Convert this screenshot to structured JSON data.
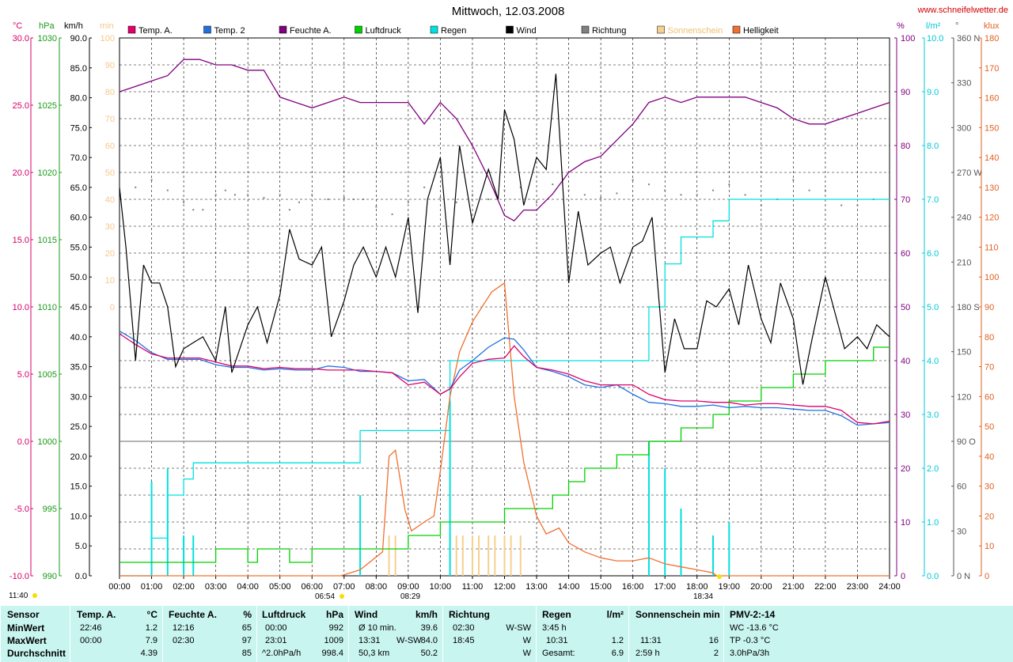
{
  "header": {
    "title": "Mittwoch, 12.03.2008",
    "site": "www.schneifelwetter.de"
  },
  "axes": {
    "temp": {
      "unit": "°C",
      "ticks": [
        "30.0",
        "25.0",
        "20.0",
        "15.0",
        "10.0",
        "5.0",
        "0.0",
        "-5.0",
        "-10.0"
      ],
      "color": "#d4006b"
    },
    "hpa": {
      "unit": "hPa",
      "ticks": [
        "1030",
        "1025",
        "1020",
        "1015",
        "1010",
        "1005",
        "1000",
        "995",
        "990"
      ],
      "color": "#1a9a1a"
    },
    "kmh": {
      "unit": "km/h",
      "ticks": [
        "90.0",
        "85.0",
        "80.0",
        "75.0",
        "70.0",
        "65.0",
        "60.0",
        "55.0",
        "50.0",
        "45.0",
        "40.0",
        "35.0",
        "30.0",
        "25.0",
        "20.0",
        "15.0",
        "10.0",
        "5.0",
        "0.0"
      ],
      "color": "#000000"
    },
    "min": {
      "unit": "min",
      "ticks": [
        "100",
        "90",
        "80",
        "70",
        "60",
        "50",
        "40",
        "30",
        "20",
        "10",
        "0"
      ],
      "color": "#f5c88a"
    },
    "pct": {
      "unit": "%",
      "ticks": [
        "100",
        "90",
        "80",
        "70",
        "60",
        "50",
        "40",
        "30",
        "20",
        "10",
        "0"
      ],
      "color": "#800080"
    },
    "rain": {
      "unit": "l/m²",
      "ticks": [
        "10.0",
        "9.0",
        "8.0",
        "7.0",
        "6.0",
        "5.0",
        "4.0",
        "3.0",
        "2.0",
        "1.0",
        "0.0"
      ],
      "color": "#00c8d8"
    },
    "dir": {
      "unit": "°",
      "ticks": [
        "360 N",
        "330",
        "300",
        "270 W",
        "240",
        "210",
        "180 S",
        "150",
        "120",
        "90 O",
        "60",
        "30",
        "0 N"
      ],
      "color": "#555555"
    },
    "klux": {
      "unit": "klux",
      "ticks": [
        "180",
        "170",
        "160",
        "150",
        "140",
        "130",
        "120",
        "110",
        "100",
        "90",
        "80",
        "70",
        "60",
        "50",
        "40",
        "30",
        "20",
        "10",
        "0"
      ],
      "color": "#e06020"
    },
    "time_ticks": [
      "00:00",
      "01:00",
      "02:00",
      "03:00",
      "04:00",
      "05:00",
      "06:00",
      "07:00",
      "08:00",
      "09:00",
      "10:00",
      "11:00",
      "12:00",
      "13:00",
      "14:00",
      "15:00",
      "16:00",
      "17:00",
      "18:00",
      "19:00",
      "20:00",
      "21:00",
      "22:00",
      "23:00",
      "24:00"
    ]
  },
  "legend": [
    {
      "name": "Temp. A.",
      "color": "#e0006a"
    },
    {
      "name": "Temp. 2",
      "color": "#2070e0"
    },
    {
      "name": "Feuchte A.",
      "color": "#800080"
    },
    {
      "name": "Luftdruck",
      "color": "#00d000"
    },
    {
      "name": "Regen",
      "color": "#00e0e0"
    },
    {
      "name": "Wind",
      "color": "#000000"
    },
    {
      "name": "Richtung",
      "color": "#808080"
    },
    {
      "name": "Sonnenschein",
      "color": "#f5d090"
    },
    {
      "name": "Helligkeit",
      "color": "#f07030"
    }
  ],
  "sun_events": {
    "moon": "11:40",
    "sunrise": "06:54",
    "sun_marker": "08:29",
    "sunset": "18:34"
  },
  "chart_data": {
    "type": "line",
    "title": "Mittwoch, 12.03.2008",
    "x_unit": "hour of day",
    "xlim": [
      0,
      24
    ],
    "series": [
      {
        "name": "Temp. A.",
        "axis": "°C",
        "color": "#e0006a",
        "x": [
          0,
          0.5,
          1,
          1.5,
          2,
          2.5,
          3,
          3.5,
          4,
          4.5,
          5,
          5.5,
          6,
          6.5,
          7,
          7.5,
          8,
          8.5,
          9,
          9.5,
          10,
          10.3,
          10.6,
          11,
          11.5,
          12,
          12.3,
          12.6,
          13,
          13.5,
          14,
          14.5,
          15,
          15.5,
          16,
          16.5,
          17,
          17.5,
          18,
          18.5,
          19,
          19.5,
          20,
          20.5,
          21,
          21.5,
          22,
          22.5,
          23,
          23.5,
          24
        ],
        "values": [
          8.0,
          7.2,
          6.5,
          6.2,
          6.2,
          6.2,
          5.9,
          5.6,
          5.6,
          5.4,
          5.5,
          5.4,
          5.4,
          5.3,
          5.3,
          5.3,
          5.2,
          5.1,
          4.2,
          4.4,
          3.5,
          3.9,
          4.8,
          5.8,
          6.1,
          6.2,
          7.1,
          6.3,
          5.5,
          5.3,
          5.0,
          4.5,
          4.2,
          4.2,
          4.2,
          3.5,
          3.1,
          3.0,
          3.0,
          2.9,
          2.9,
          2.7,
          2.8,
          2.8,
          2.7,
          2.6,
          2.6,
          2.3,
          1.4,
          1.3,
          1.5
        ]
      },
      {
        "name": "Temp. 2",
        "axis": "°C",
        "color": "#2070e0",
        "x": [
          0,
          0.5,
          1,
          1.5,
          2,
          2.5,
          3,
          3.5,
          4,
          4.5,
          5,
          5.5,
          6,
          6.5,
          7,
          7.5,
          8,
          8.5,
          9,
          9.5,
          10,
          10.3,
          10.6,
          11,
          11.5,
          12,
          12.3,
          12.6,
          13,
          13.5,
          14,
          14.5,
          15,
          15.5,
          16,
          16.5,
          17,
          17.5,
          18,
          18.5,
          19,
          19.5,
          20,
          20.5,
          21,
          21.5,
          22,
          22.5,
          23,
          23.5,
          24
        ],
        "values": [
          8.2,
          7.5,
          6.6,
          6.1,
          6.1,
          6.1,
          5.7,
          5.5,
          5.5,
          5.3,
          5.4,
          5.3,
          5.3,
          5.6,
          5.5,
          5.2,
          5.2,
          5.1,
          4.5,
          4.6,
          3.5,
          3.9,
          5.3,
          6.0,
          7.0,
          7.7,
          7.6,
          6.8,
          5.5,
          5.2,
          4.8,
          4.2,
          4.0,
          4.2,
          3.5,
          2.9,
          2.8,
          2.6,
          2.6,
          2.7,
          2.5,
          2.6,
          2.5,
          2.5,
          2.4,
          2.3,
          2.3,
          1.9,
          1.2,
          1.3,
          1.4
        ]
      },
      {
        "name": "Feuchte A.",
        "axis": "%",
        "color": "#800080",
        "x": [
          0,
          0.5,
          1,
          1.5,
          2,
          2.5,
          3,
          3.5,
          4,
          4.5,
          5,
          5.5,
          6,
          6.5,
          7,
          7.5,
          8,
          8.5,
          9,
          9.5,
          10,
          10.5,
          11,
          11.5,
          12,
          12.3,
          12.6,
          13,
          13.5,
          14,
          14.5,
          15,
          15.5,
          16,
          16.5,
          17,
          17.5,
          18,
          18.5,
          19,
          19.5,
          20,
          20.5,
          21,
          21.5,
          22,
          22.5,
          23,
          23.5,
          24
        ],
        "values": [
          90,
          91,
          92,
          93,
          96,
          96,
          95,
          95,
          94,
          94,
          89,
          88,
          87,
          88,
          89,
          88,
          88,
          88,
          88,
          84,
          88,
          85,
          80,
          74,
          67,
          66,
          68,
          68,
          71,
          75,
          77,
          78,
          81,
          84,
          88,
          89,
          88,
          89,
          89,
          89,
          89,
          88,
          87,
          85,
          84,
          84,
          85,
          86,
          87,
          88
        ]
      },
      {
        "name": "Luftdruck",
        "axis": "hPa",
        "color": "#00d000",
        "x": [
          0,
          2.8,
          3,
          3.8,
          4,
          4.3,
          5,
          5.3,
          5.5,
          6,
          7,
          8,
          8.4,
          9,
          9.8,
          10,
          10.5,
          11,
          12,
          12.5,
          13,
          13.5,
          14,
          14.5,
          15,
          15.5,
          16,
          16.5,
          17,
          17.5,
          18,
          18.5,
          19,
          19.5,
          20,
          21,
          22,
          23,
          23.5,
          24
        ],
        "values": [
          991,
          991,
          992,
          992,
          991,
          992,
          992,
          991,
          991,
          992,
          992,
          992,
          992,
          993,
          993,
          994,
          994,
          994,
          995,
          995,
          995,
          996,
          997,
          998,
          998,
          999,
          999,
          1000,
          1000,
          1001,
          1001,
          1002,
          1003,
          1003,
          1004,
          1005,
          1006,
          1006,
          1007,
          1007
        ]
      },
      {
        "name": "Regen",
        "axis": "l/m²",
        "color": "#00e0e0",
        "x": [
          0,
          0.7,
          1,
          1.5,
          1.7,
          2,
          2.3,
          3,
          5,
          7,
          7.5,
          8.5,
          10,
          10.3,
          10.5,
          11,
          13,
          15,
          15.6,
          16.5,
          17,
          17.5,
          18,
          18.5,
          19,
          19.5,
          20,
          22,
          24
        ],
        "values": [
          0,
          0,
          0.7,
          1.5,
          1.5,
          1.8,
          2.1,
          2.1,
          2.1,
          2.1,
          2.7,
          2.7,
          2.7,
          4.0,
          4.0,
          4.0,
          4.0,
          4.0,
          4.0,
          5.0,
          5.8,
          6.3,
          6.3,
          6.6,
          7.0,
          7.0,
          7.0,
          7.0,
          7.0
        ]
      },
      {
        "name": "Wind",
        "axis": "km/h",
        "color": "#000000",
        "x": [
          0,
          0.2,
          0.5,
          0.75,
          1,
          1.25,
          1.5,
          1.75,
          2,
          2.3,
          2.6,
          3,
          3.3,
          3.5,
          4,
          4.3,
          4.6,
          5,
          5.3,
          5.6,
          6,
          6.3,
          6.6,
          7,
          7.3,
          7.6,
          8,
          8.3,
          8.6,
          9,
          9.3,
          9.6,
          10,
          10.3,
          10.6,
          11,
          11.5,
          11.8,
          12,
          12.3,
          12.6,
          13,
          13.3,
          13.6,
          14,
          14.3,
          14.6,
          15,
          15.3,
          15.6,
          16,
          16.3,
          16.6,
          17,
          17.3,
          17.6,
          18,
          18.3,
          18.6,
          19,
          19.3,
          19.6,
          20,
          20.3,
          20.6,
          21,
          21.3,
          21.6,
          22,
          22.3,
          22.6,
          23,
          23.3,
          23.6,
          24
        ],
        "values": [
          65,
          55,
          36,
          52,
          49,
          49,
          45,
          35,
          38,
          39,
          40,
          36,
          45,
          34,
          42,
          45,
          39,
          47,
          58,
          53,
          52,
          55,
          40,
          46,
          52,
          55,
          50,
          55,
          50,
          60,
          44,
          63,
          70,
          52,
          72,
          59,
          68,
          63,
          78,
          73,
          62,
          70,
          68,
          84,
          49,
          61,
          52,
          54,
          55,
          49,
          55,
          56,
          60,
          34,
          43,
          38,
          38,
          46,
          45,
          48,
          42,
          52,
          43,
          39,
          49,
          43,
          32,
          40,
          50,
          44,
          38,
          40,
          38,
          42,
          40
        ]
      },
      {
        "name": "Helligkeit",
        "axis": "klux",
        "color": "#f07030",
        "x": [
          0,
          6.9,
          7.5,
          8.2,
          8.4,
          8.6,
          8.9,
          9.1,
          9.5,
          9.8,
          10,
          10.3,
          10.6,
          11,
          11.3,
          11.6,
          12,
          12.3,
          12.6,
          13,
          13.3,
          13.7,
          14,
          14.5,
          15,
          15.5,
          16,
          16.5,
          17,
          17.5,
          18,
          18.5,
          18.6,
          24
        ],
        "values": [
          0,
          0,
          2,
          8,
          40,
          42,
          22,
          15,
          18,
          20,
          35,
          60,
          75,
          85,
          90,
          95,
          98,
          60,
          38,
          20,
          14,
          16,
          11,
          8,
          6,
          5,
          5,
          6,
          4,
          3,
          2,
          1,
          0,
          0
        ]
      },
      {
        "name": "Sonnenschein",
        "axis": "min",
        "type": "bar",
        "x": [
          8.4,
          8.6,
          10.3,
          10.5,
          10.7,
          11,
          11.2,
          11.5,
          11.7,
          12,
          12.2,
          12.5
        ],
        "values": [
          15,
          15,
          15,
          15,
          15,
          15,
          15,
          15,
          15,
          15,
          15,
          15
        ]
      },
      {
        "name": "Richtung",
        "axis": "°",
        "type": "scatter",
        "x": [
          0,
          0.5,
          1,
          1.5,
          2,
          2.3,
          2.6,
          3,
          3.3,
          3.6,
          4,
          4.5,
          5,
          5.3,
          5.6,
          6,
          6.5,
          7,
          7.3,
          7.6,
          8,
          8.5,
          9,
          9.5,
          10,
          10.5,
          11,
          11.5,
          12,
          12.5,
          13,
          13.5,
          14,
          14.5,
          15,
          15.5,
          16,
          16.5,
          17,
          17.5,
          18,
          18.5,
          19,
          19.5,
          20,
          20.5,
          21,
          21.5,
          22,
          22.5,
          23,
          23.5,
          24
        ],
        "values": [
          265,
          260,
          265,
          258,
          250,
          245,
          245,
          255,
          258,
          255,
          255,
          253,
          255,
          245,
          250,
          255,
          252,
          253,
          252,
          252,
          247,
          242,
          250,
          260,
          253,
          250,
          255,
          252,
          258,
          260,
          250,
          262,
          258,
          255,
          253,
          256,
          265,
          262,
          258,
          255,
          255,
          258,
          262,
          255,
          248,
          252,
          265,
          258,
          258,
          248,
          248,
          252,
          250
        ]
      }
    ]
  },
  "stats": {
    "headers": {
      "sensor": "Sensor",
      "temp": "Temp. A.",
      "temp_unit": "°C",
      "hum": "Feuchte A.",
      "hum_unit": "%",
      "press": "Luftdruck",
      "press_unit": "hPa",
      "wind": "Wind",
      "wind_unit": "km/h",
      "dir": "Richtung",
      "rain": "Regen",
      "rain_unit": "l/m²",
      "sun": "Sonnenschein min",
      "pmv": "PMV-2:-14"
    },
    "rows": [
      {
        "label": "MinWert",
        "temp_t": "22:46",
        "temp_v": "1.2",
        "hum_t": "12:16",
        "hum_v": "65",
        "press_t": "00:00",
        "press_v": "992",
        "wind_t": "Ø 10 min.",
        "wind_d": "",
        "wind_v": "39.6",
        "dir_t": "02:30",
        "dir_v": "W-SW",
        "rain_t": "3:45 h",
        "rain_v": "",
        "sun_t": "",
        "sun_v": "",
        "pmv": "WC -13.6 °C"
      },
      {
        "label": "MaxWert",
        "temp_t": "00:00",
        "temp_v": "7.9",
        "hum_t": "02:30",
        "hum_v": "97",
        "press_t": "23:01",
        "press_v": "1009",
        "wind_t": "13:31",
        "wind_d": "W-SW",
        "wind_v": "84.0",
        "dir_t": "18:45",
        "dir_v": "W",
        "rain_t": "10:31",
        "rain_v": "1.2",
        "sun_t": "11:31",
        "sun_v": "16",
        "pmv": "TP -0.3 °C"
      },
      {
        "label": "Durchschnitt",
        "temp_t": "",
        "temp_v": "4.39",
        "hum_t": "",
        "hum_v": "85",
        "press_t": "^2.0hPa/h",
        "press_v": "998.4",
        "wind_t": "50,3 km",
        "wind_d": "",
        "wind_v": "50.2",
        "dir_t": "",
        "dir_v": "W",
        "rain_t": "Gesamt:",
        "rain_v": "6.9",
        "sun_t": "2:59 h",
        "sun_v": "2",
        "pmv": "3.0hPa/3h"
      }
    ]
  }
}
